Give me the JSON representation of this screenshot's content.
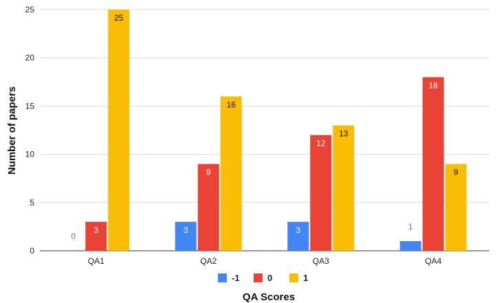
{
  "chart_data": {
    "type": "bar",
    "categories": [
      "QA1",
      "QA2",
      "QA3",
      "QA4"
    ],
    "series": [
      {
        "name": "-1",
        "color": "#4285f4",
        "values": [
          0,
          3,
          3,
          1
        ]
      },
      {
        "name": "0",
        "color": "#ea4335",
        "values": [
          3,
          9,
          12,
          18
        ]
      },
      {
        "name": "1",
        "color": "#fbbc04",
        "values": [
          25,
          16,
          13,
          9
        ]
      }
    ],
    "title": "",
    "xlabel": "QA Scores",
    "ylabel": "Number of papers",
    "ylim": [
      0,
      25
    ],
    "yticks": [
      0,
      5,
      10,
      15,
      20,
      25
    ],
    "grid": true,
    "legend": "bottom",
    "data_labels": true
  }
}
